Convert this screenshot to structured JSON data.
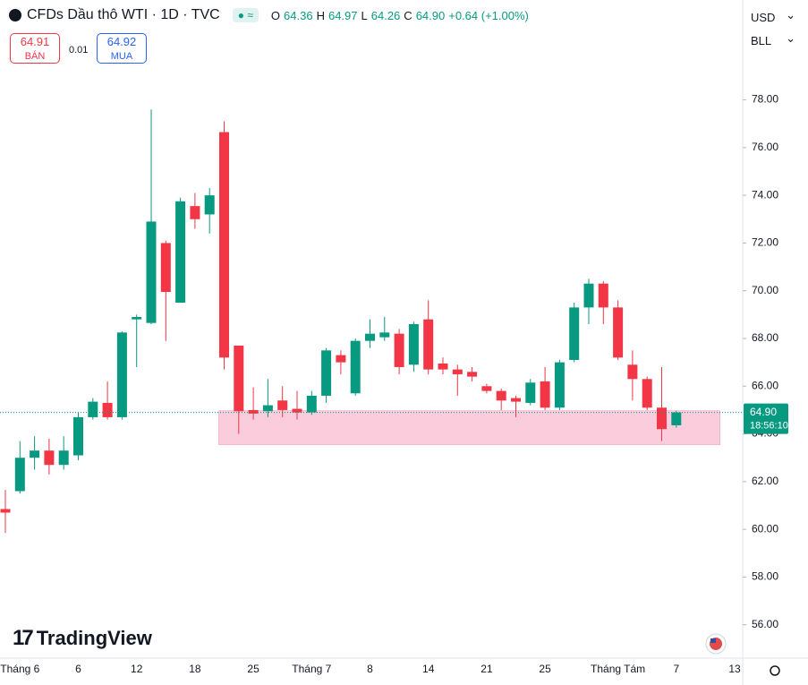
{
  "chart_data": {
    "type": "candlestick",
    "title": "CFDs Dầu thô WTI · 1D · TVC",
    "ohlc": [
      {
        "key": "O",
        "value": "64.36"
      },
      {
        "key": "H",
        "value": "64.97"
      },
      {
        "key": "L",
        "value": "64.26"
      },
      {
        "key": "C",
        "value": "64.90"
      }
    ],
    "change_label": "+0.64 (+1.00%)",
    "bid": {
      "price": 64.91,
      "label": "BÁN"
    },
    "spread": 0.01,
    "ask": {
      "price": 64.92,
      "label": "MUA"
    },
    "currency": "USD",
    "unit": "BLL",
    "watermark": "TradingView",
    "countdown": "18:56:10",
    "last_price": {
      "value": 64.9,
      "label": "64.90"
    },
    "up_color": "#089981",
    "down_color": "#f23645",
    "zone": {
      "low": 63.55,
      "high": 64.97,
      "from": 15,
      "to": 49,
      "color": "#f8bbd0"
    },
    "categories": [
      null,
      "Tháng 6",
      null,
      null,
      null,
      "6",
      null,
      null,
      null,
      "12",
      null,
      null,
      null,
      "18",
      null,
      null,
      null,
      "25",
      null,
      null,
      null,
      "Tháng 7",
      null,
      null,
      null,
      "8",
      null,
      null,
      null,
      "14",
      null,
      null,
      null,
      "21",
      null,
      null,
      null,
      "25",
      null,
      null,
      null,
      null,
      "Tháng Tám",
      null,
      null,
      null,
      "7",
      null,
      null,
      null,
      "13"
    ],
    "open": [
      60.85,
      61.6,
      63.0,
      63.3,
      62.7,
      63.1,
      64.7,
      65.3,
      64.7,
      68.8,
      68.65,
      72.0,
      69.5,
      73.55,
      73.2,
      76.65,
      67.7,
      65.0,
      64.95,
      65.4,
      65.05,
      64.9,
      65.6,
      67.3,
      65.7,
      67.9,
      68.05,
      68.2,
      66.9,
      68.8,
      66.95,
      66.7,
      66.6,
      66.0,
      65.8,
      65.5,
      65.3,
      66.2,
      65.1,
      67.1,
      69.3,
      70.3,
      69.3,
      66.9,
      66.3,
      65.1,
      64.36,
      null,
      null,
      null,
      null
    ],
    "high": [
      61.65,
      63.7,
      63.9,
      63.8,
      63.9,
      64.9,
      65.5,
      66.2,
      68.3,
      69.0,
      77.6,
      72.1,
      73.9,
      74.1,
      74.3,
      77.1,
      67.7,
      65.95,
      66.3,
      66.0,
      65.8,
      65.8,
      67.6,
      67.5,
      68.0,
      68.8,
      68.9,
      68.4,
      68.7,
      69.6,
      67.2,
      66.9,
      66.8,
      66.1,
      65.9,
      65.6,
      66.3,
      66.8,
      67.1,
      69.5,
      70.5,
      70.4,
      69.6,
      67.5,
      66.4,
      66.8,
      64.97,
      null,
      null,
      null,
      null
    ],
    "low": [
      59.85,
      61.5,
      62.5,
      62.3,
      62.5,
      62.9,
      64.6,
      64.6,
      64.6,
      66.8,
      68.6,
      67.9,
      69.5,
      72.6,
      72.4,
      66.7,
      64.0,
      64.6,
      64.7,
      64.7,
      64.6,
      64.8,
      65.3,
      66.5,
      65.6,
      67.6,
      67.9,
      66.5,
      66.6,
      66.5,
      66.5,
      65.6,
      66.2,
      65.7,
      65.0,
      64.7,
      65.2,
      65.0,
      65.0,
      67.0,
      68.6,
      68.6,
      67.1,
      65.4,
      65.0,
      63.7,
      64.26,
      null,
      null,
      null,
      null
    ],
    "close": [
      60.7,
      63.0,
      63.3,
      62.7,
      63.3,
      64.7,
      65.35,
      64.7,
      68.25,
      68.9,
      72.9,
      69.95,
      73.75,
      73.0,
      74.0,
      67.2,
      64.95,
      64.85,
      65.2,
      65.0,
      64.9,
      65.6,
      67.5,
      67.0,
      67.9,
      68.2,
      68.25,
      66.8,
      68.6,
      66.7,
      66.7,
      66.5,
      66.4,
      65.8,
      65.4,
      65.35,
      66.15,
      65.1,
      67.0,
      69.3,
      70.3,
      69.3,
      67.2,
      66.3,
      65.1,
      64.2,
      64.9,
      null,
      null,
      null,
      null
    ],
    "ylim": [
      54.6,
      82.0
    ],
    "yticks": [
      {
        "value": 56,
        "label": "56.00"
      },
      {
        "value": 58,
        "label": "58.00"
      },
      {
        "value": 60,
        "label": "60.00"
      },
      {
        "value": 62,
        "label": "62.00"
      },
      {
        "value": 64,
        "label": "64.00"
      },
      {
        "value": 66,
        "label": "66.00"
      },
      {
        "value": 68,
        "label": "68.00"
      },
      {
        "value": 70,
        "label": "70.00"
      },
      {
        "value": 72,
        "label": "72.00"
      },
      {
        "value": 74,
        "label": "74.00"
      },
      {
        "value": 76,
        "label": "76.00"
      },
      {
        "value": 78,
        "label": "78.00"
      }
    ]
  }
}
